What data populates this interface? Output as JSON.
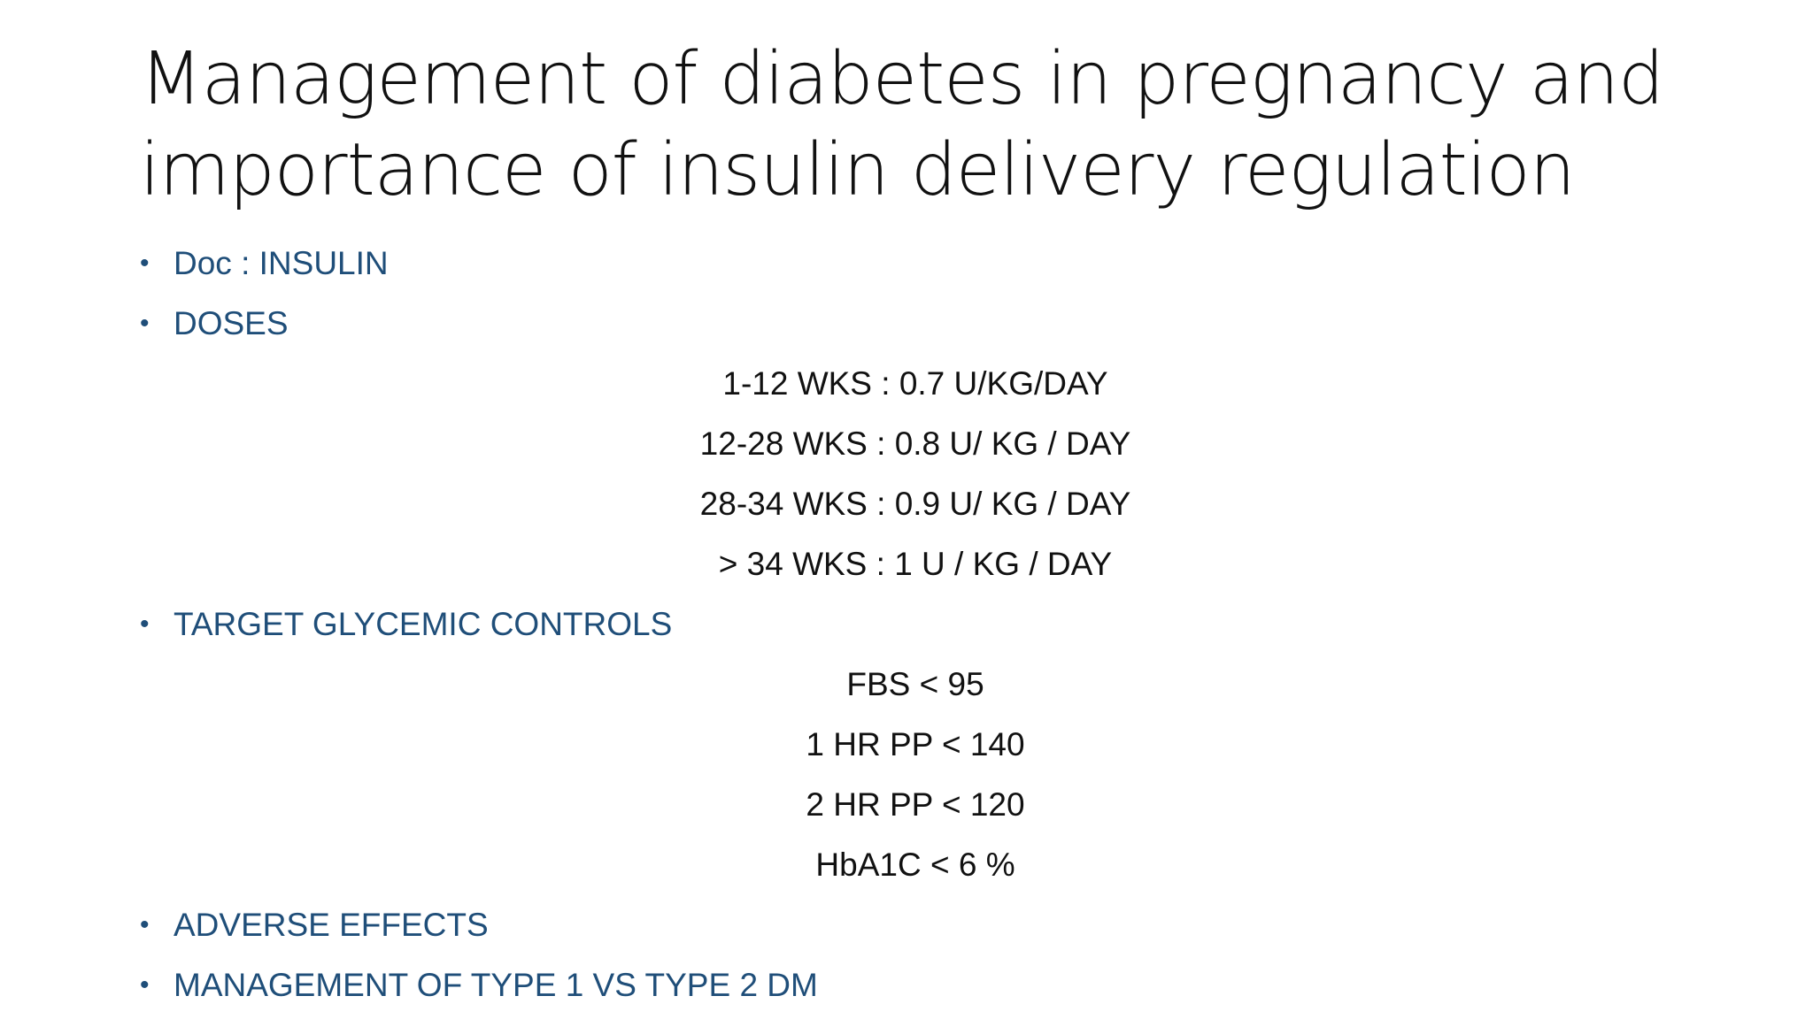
{
  "slide": {
    "title_line1": "Management of diabetes in pregnancy and",
    "title_line2": "importance of insulin delivery regulation",
    "bullet_glyph": "•",
    "bullets": {
      "doc": "Doc : INSULIN",
      "doses": "DOSES",
      "targets": "TARGET GLYCEMIC CONTROLS",
      "adverse": "ADVERSE EFFECTS",
      "management": "MANAGEMENT OF TYPE 1 VS TYPE 2 DM"
    },
    "doses": [
      "1-12 WKS : 0.7 U/KG/DAY",
      "12-28 WKS : 0.8 U/ KG  / DAY",
      "28-34 WKS : 0.9 U/ KG / DAY",
      "> 34 WKS : 1 U / KG / DAY"
    ],
    "targets": [
      "FBS < 95",
      "1 HR PP < 140",
      "2 HR PP < 120",
      "HbA1C < 6 %"
    ],
    "colors": {
      "bullet_text": "#1f4e79",
      "body_text": "#111111",
      "background": "#ffffff"
    }
  }
}
